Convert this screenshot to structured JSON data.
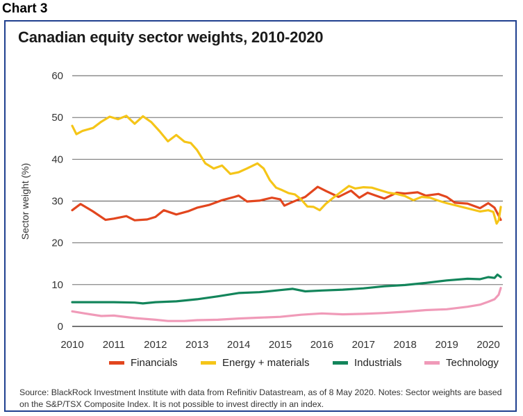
{
  "heading": "Chart 3",
  "source_note": "Source: BlackRock Investment Institute with data from Refinitiv Datastream, as of 8 May 2020. Notes: Sector weights are based on the S&P/TSX Composite Index. It is not possible to invest directly in an index.",
  "chart_data": {
    "type": "line",
    "title": "Canadian equity sector weights, 2010-2020",
    "xlabel": "",
    "ylabel": "Sector weight (%)",
    "xlim": [
      2010.0,
      2020.35
    ],
    "ylim": [
      0,
      60
    ],
    "x_ticks": [
      2010,
      2011,
      2012,
      2013,
      2014,
      2015,
      2016,
      2017,
      2018,
      2019,
      2020
    ],
    "y_ticks": [
      0,
      10,
      20,
      30,
      40,
      50,
      60
    ],
    "grid": "horizontal",
    "legend_position": "bottom",
    "series": [
      {
        "name": "Financials",
        "color": "#e2461e",
        "points": [
          [
            2010.0,
            27.8
          ],
          [
            2010.2,
            29.3
          ],
          [
            2010.5,
            27.5
          ],
          [
            2010.8,
            25.5
          ],
          [
            2011.0,
            25.8
          ],
          [
            2011.3,
            26.4
          ],
          [
            2011.5,
            25.4
          ],
          [
            2011.8,
            25.6
          ],
          [
            2012.0,
            26.2
          ],
          [
            2012.2,
            27.8
          ],
          [
            2012.5,
            26.8
          ],
          [
            2012.8,
            27.6
          ],
          [
            2013.0,
            28.4
          ],
          [
            2013.3,
            29.1
          ],
          [
            2013.6,
            30.2
          ],
          [
            2013.9,
            31.0
          ],
          [
            2014.0,
            31.3
          ],
          [
            2014.2,
            29.9
          ],
          [
            2014.5,
            30.1
          ],
          [
            2014.8,
            30.8
          ],
          [
            2015.0,
            30.4
          ],
          [
            2015.1,
            28.9
          ],
          [
            2015.3,
            29.8
          ],
          [
            2015.6,
            31.0
          ],
          [
            2015.9,
            33.4
          ],
          [
            2016.1,
            32.4
          ],
          [
            2016.4,
            31.0
          ],
          [
            2016.7,
            32.5
          ],
          [
            2016.9,
            30.8
          ],
          [
            2017.1,
            32.0
          ],
          [
            2017.3,
            31.3
          ],
          [
            2017.5,
            30.6
          ],
          [
            2017.8,
            32.0
          ],
          [
            2018.0,
            31.8
          ],
          [
            2018.3,
            32.1
          ],
          [
            2018.5,
            31.3
          ],
          [
            2018.8,
            31.7
          ],
          [
            2019.0,
            31.0
          ],
          [
            2019.2,
            29.6
          ],
          [
            2019.5,
            29.4
          ],
          [
            2019.8,
            28.3
          ],
          [
            2020.0,
            29.5
          ],
          [
            2020.15,
            28.4
          ],
          [
            2020.25,
            26.5
          ],
          [
            2020.3,
            25.5
          ]
        ]
      },
      {
        "name": "Energy + materials",
        "color": "#f5c518",
        "points": [
          [
            2010.0,
            48.0
          ],
          [
            2010.1,
            46.0
          ],
          [
            2010.25,
            46.8
          ],
          [
            2010.5,
            47.5
          ],
          [
            2010.7,
            49.0
          ],
          [
            2010.9,
            50.2
          ],
          [
            2011.1,
            49.6
          ],
          [
            2011.3,
            50.4
          ],
          [
            2011.5,
            48.5
          ],
          [
            2011.7,
            50.3
          ],
          [
            2011.9,
            48.9
          ],
          [
            2012.1,
            46.7
          ],
          [
            2012.3,
            44.3
          ],
          [
            2012.5,
            45.8
          ],
          [
            2012.7,
            44.2
          ],
          [
            2012.85,
            43.9
          ],
          [
            2013.0,
            42.2
          ],
          [
            2013.2,
            39.0
          ],
          [
            2013.4,
            37.8
          ],
          [
            2013.6,
            38.5
          ],
          [
            2013.8,
            36.5
          ],
          [
            2014.0,
            36.9
          ],
          [
            2014.2,
            37.8
          ],
          [
            2014.45,
            39.0
          ],
          [
            2014.6,
            37.8
          ],
          [
            2014.75,
            35.0
          ],
          [
            2014.9,
            33.2
          ],
          [
            2015.05,
            32.6
          ],
          [
            2015.2,
            31.9
          ],
          [
            2015.35,
            31.6
          ],
          [
            2015.5,
            30.4
          ],
          [
            2015.65,
            28.7
          ],
          [
            2015.8,
            28.6
          ],
          [
            2015.95,
            27.8
          ],
          [
            2016.1,
            29.4
          ],
          [
            2016.3,
            31.0
          ],
          [
            2016.5,
            32.5
          ],
          [
            2016.65,
            33.6
          ],
          [
            2016.8,
            33.0
          ],
          [
            2017.0,
            33.3
          ],
          [
            2017.2,
            33.2
          ],
          [
            2017.4,
            32.6
          ],
          [
            2017.6,
            32.0
          ],
          [
            2017.8,
            31.7
          ],
          [
            2018.0,
            31.2
          ],
          [
            2018.2,
            30.2
          ],
          [
            2018.4,
            31.0
          ],
          [
            2018.6,
            30.8
          ],
          [
            2018.8,
            30.1
          ],
          [
            2019.0,
            29.5
          ],
          [
            2019.2,
            29.0
          ],
          [
            2019.4,
            28.5
          ],
          [
            2019.6,
            28.0
          ],
          [
            2019.8,
            27.5
          ],
          [
            2020.0,
            27.8
          ],
          [
            2020.12,
            27.4
          ],
          [
            2020.2,
            24.6
          ],
          [
            2020.25,
            25.4
          ],
          [
            2020.3,
            28.6
          ]
        ]
      },
      {
        "name": "Industrials",
        "color": "#13855b",
        "points": [
          [
            2010.0,
            5.8
          ],
          [
            2010.5,
            5.8
          ],
          [
            2011.0,
            5.8
          ],
          [
            2011.5,
            5.7
          ],
          [
            2011.7,
            5.5
          ],
          [
            2012.0,
            5.8
          ],
          [
            2012.5,
            6.0
          ],
          [
            2013.0,
            6.5
          ],
          [
            2013.5,
            7.2
          ],
          [
            2014.0,
            8.0
          ],
          [
            2014.5,
            8.2
          ],
          [
            2015.0,
            8.7
          ],
          [
            2015.3,
            9.0
          ],
          [
            2015.6,
            8.4
          ],
          [
            2016.0,
            8.6
          ],
          [
            2016.5,
            8.8
          ],
          [
            2017.0,
            9.1
          ],
          [
            2017.5,
            9.6
          ],
          [
            2018.0,
            9.9
          ],
          [
            2018.5,
            10.4
          ],
          [
            2019.0,
            11.0
          ],
          [
            2019.5,
            11.4
          ],
          [
            2019.8,
            11.3
          ],
          [
            2020.0,
            11.8
          ],
          [
            2020.15,
            11.6
          ],
          [
            2020.22,
            12.4
          ],
          [
            2020.3,
            11.8
          ]
        ]
      },
      {
        "name": "Technology",
        "color": "#f09ab8",
        "points": [
          [
            2010.0,
            3.6
          ],
          [
            2010.3,
            3.1
          ],
          [
            2010.7,
            2.5
          ],
          [
            2011.0,
            2.6
          ],
          [
            2011.5,
            2.0
          ],
          [
            2012.0,
            1.6
          ],
          [
            2012.3,
            1.3
          ],
          [
            2012.7,
            1.3
          ],
          [
            2013.0,
            1.5
          ],
          [
            2013.5,
            1.6
          ],
          [
            2014.0,
            1.9
          ],
          [
            2014.5,
            2.1
          ],
          [
            2015.0,
            2.3
          ],
          [
            2015.5,
            2.8
          ],
          [
            2016.0,
            3.1
          ],
          [
            2016.5,
            2.9
          ],
          [
            2017.0,
            3.0
          ],
          [
            2017.5,
            3.2
          ],
          [
            2018.0,
            3.5
          ],
          [
            2018.5,
            3.9
          ],
          [
            2019.0,
            4.1
          ],
          [
            2019.5,
            4.7
          ],
          [
            2019.8,
            5.2
          ],
          [
            2020.0,
            5.9
          ],
          [
            2020.15,
            6.5
          ],
          [
            2020.25,
            7.6
          ],
          [
            2020.3,
            9.2
          ]
        ]
      }
    ]
  }
}
